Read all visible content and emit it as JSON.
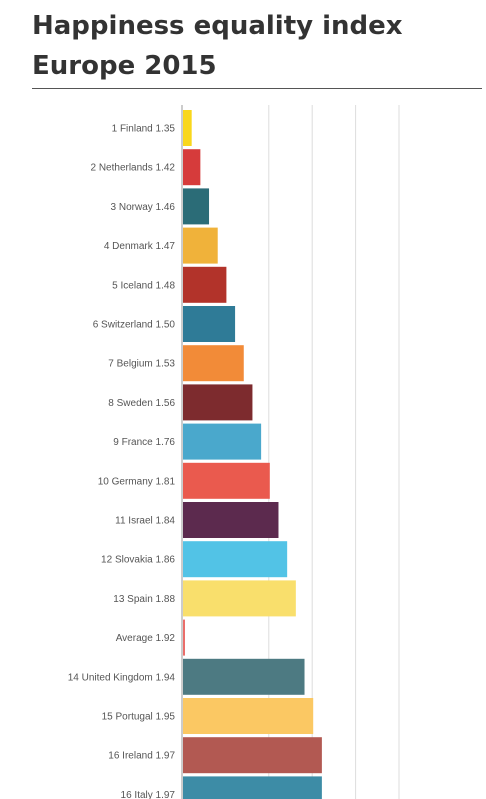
{
  "title": "Happiness equality index Europe 2015",
  "chart_data": {
    "type": "bar",
    "orientation": "horizontal",
    "title": "Happiness equality index Europe 2015",
    "categories": [
      "1 Finland 1.35",
      "2 Netherlands 1.42",
      "3 Norway 1.46",
      "4 Denmark 1.47",
      "5 Iceland 1.48",
      "6 Switzerland 1.50",
      "7 Belgium 1.53",
      "8 Sweden 1.56",
      "9 France 1.76",
      "10 Germany 1.81",
      "11 Israel 1.84",
      "12 Slovakia 1.86",
      "13 Spain 1.88",
      "Average 1.92",
      "14 United Kingdom 1.94",
      "15 Portugal 1.95",
      "16 Ireland 1.97",
      "16 Italy 1.97"
    ],
    "bar_rank_levels": [
      1,
      2,
      3,
      4,
      5,
      6,
      7,
      8,
      9,
      10,
      11,
      12,
      13,
      0,
      14,
      15,
      16,
      16
    ],
    "rank_axis_max": 25,
    "colors": [
      "#f9d71c",
      "#d63b3b",
      "#2b6c77",
      "#f0b23a",
      "#b2332a",
      "#2f7b97",
      "#f28b38",
      "#7d2b2e",
      "#4aa8cc",
      "#ea5a4e",
      "#5c2a4e",
      "#52c3e6",
      "#f9df6c",
      "#ea6e6a",
      "#4d7a82",
      "#fbc863",
      "#b25952",
      "#3d8ca6"
    ],
    "grid": true
  }
}
